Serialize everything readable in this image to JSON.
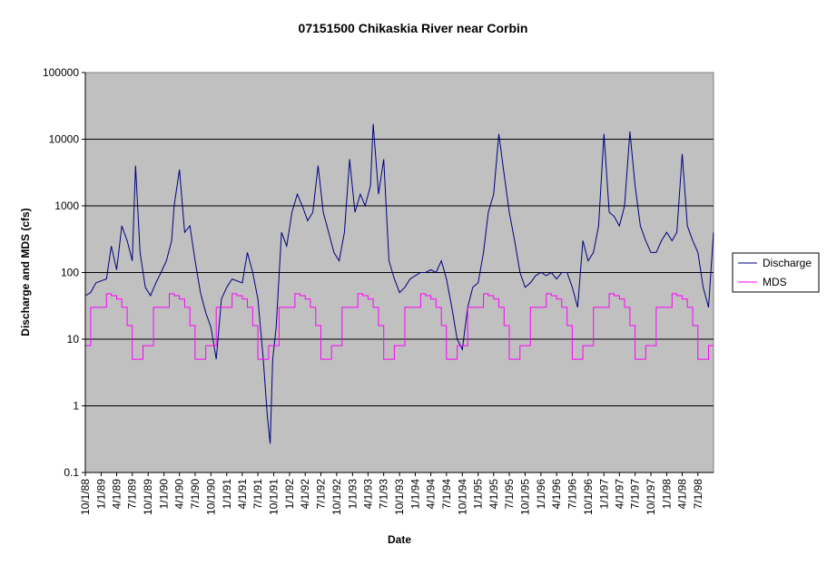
{
  "chart_data": {
    "type": "line",
    "title": "07151500 Chikaskia River near Corbin",
    "xlabel": "Date",
    "ylabel": "Discharge and MDS (cfs)",
    "y_scale": "log",
    "ylim": [
      0.1,
      100000
    ],
    "y_ticks": [
      "0.1",
      "1",
      "10",
      "100",
      "1000",
      "10000",
      "100000"
    ],
    "x_range": [
      "1988-10-01",
      "1998-09-30"
    ],
    "x_ticks": [
      "10/1/88",
      "1/1/89",
      "4/1/89",
      "7/1/89",
      "10/1/89",
      "1/1/90",
      "4/1/90",
      "7/1/90",
      "10/1/90",
      "1/1/91",
      "4/1/91",
      "7/1/91",
      "10/1/91",
      "1/1/92",
      "4/1/92",
      "7/1/92",
      "10/1/92",
      "1/1/93",
      "4/1/93",
      "7/1/93",
      "10/1/93",
      "1/1/94",
      "4/1/94",
      "7/1/94",
      "10/1/94",
      "1/1/95",
      "4/1/95",
      "7/1/95",
      "10/1/95",
      "1/1/96",
      "4/1/96",
      "7/1/96",
      "10/1/96",
      "1/1/97",
      "4/1/97",
      "7/1/97",
      "10/1/97",
      "1/1/98",
      "4/1/98",
      "7/1/98"
    ],
    "grid": "horizontal",
    "plot_background": "#c0c0c0",
    "legend_position": "right",
    "series": [
      {
        "name": "Discharge",
        "color": "#000080",
        "points": [
          [
            "1988-10-01",
            45
          ],
          [
            "1988-11-01",
            50
          ],
          [
            "1988-12-01",
            70
          ],
          [
            "1989-01-01",
            75
          ],
          [
            "1989-02-01",
            80
          ],
          [
            "1989-03-01",
            250
          ],
          [
            "1989-04-01",
            110
          ],
          [
            "1989-05-01",
            500
          ],
          [
            "1989-06-01",
            300
          ],
          [
            "1989-07-01",
            150
          ],
          [
            "1989-07-20",
            4000
          ],
          [
            "1989-08-15",
            200
          ],
          [
            "1989-09-15",
            60
          ],
          [
            "1989-10-15",
            45
          ],
          [
            "1989-11-15",
            70
          ],
          [
            "1989-12-15",
            100
          ],
          [
            "1990-01-15",
            150
          ],
          [
            "1990-02-15",
            300
          ],
          [
            "1990-03-01",
            1000
          ],
          [
            "1990-04-01",
            3500
          ],
          [
            "1990-05-01",
            400
          ],
          [
            "1990-06-01",
            500
          ],
          [
            "1990-07-01",
            150
          ],
          [
            "1990-08-01",
            50
          ],
          [
            "1990-09-01",
            25
          ],
          [
            "1990-10-01",
            15
          ],
          [
            "1990-11-01",
            5
          ],
          [
            "1990-12-01",
            40
          ],
          [
            "1991-01-01",
            60
          ],
          [
            "1991-02-01",
            80
          ],
          [
            "1991-03-01",
            75
          ],
          [
            "1991-04-01",
            70
          ],
          [
            "1991-05-01",
            200
          ],
          [
            "1991-06-01",
            100
          ],
          [
            "1991-07-01",
            40
          ],
          [
            "1991-08-01",
            5
          ],
          [
            "1991-08-25",
            0.7
          ],
          [
            "1991-09-10",
            0.27
          ],
          [
            "1991-09-25",
            5
          ],
          [
            "1991-10-15",
            15
          ],
          [
            "1991-11-15",
            400
          ],
          [
            "1991-12-15",
            250
          ],
          [
            "1992-01-15",
            800
          ],
          [
            "1992-02-15",
            1500
          ],
          [
            "1992-03-15",
            1000
          ],
          [
            "1992-04-15",
            600
          ],
          [
            "1992-05-15",
            800
          ],
          [
            "1992-06-15",
            4000
          ],
          [
            "1992-07-15",
            800
          ],
          [
            "1992-08-15",
            400
          ],
          [
            "1992-09-15",
            200
          ],
          [
            "1992-10-15",
            150
          ],
          [
            "1992-11-15",
            400
          ],
          [
            "1992-12-15",
            5000
          ],
          [
            "1993-01-15",
            800
          ],
          [
            "1993-02-15",
            1500
          ],
          [
            "1993-03-15",
            1000
          ],
          [
            "1993-04-15",
            2000
          ],
          [
            "1993-05-01",
            17000
          ],
          [
            "1993-06-01",
            1500
          ],
          [
            "1993-07-01",
            5000
          ],
          [
            "1993-08-01",
            150
          ],
          [
            "1993-09-01",
            80
          ],
          [
            "1993-10-01",
            50
          ],
          [
            "1993-11-01",
            60
          ],
          [
            "1993-12-01",
            80
          ],
          [
            "1994-01-01",
            90
          ],
          [
            "1994-02-01",
            100
          ],
          [
            "1994-03-01",
            100
          ],
          [
            "1994-04-01",
            110
          ],
          [
            "1994-05-01",
            100
          ],
          [
            "1994-06-01",
            150
          ],
          [
            "1994-07-01",
            80
          ],
          [
            "1994-08-01",
            30
          ],
          [
            "1994-09-01",
            10
          ],
          [
            "1994-10-01",
            7
          ],
          [
            "1994-11-01",
            30
          ],
          [
            "1994-12-01",
            60
          ],
          [
            "1995-01-01",
            70
          ],
          [
            "1995-02-01",
            200
          ],
          [
            "1995-03-01",
            800
          ],
          [
            "1995-04-01",
            1500
          ],
          [
            "1995-05-01",
            12000
          ],
          [
            "1995-06-01",
            3000
          ],
          [
            "1995-07-01",
            800
          ],
          [
            "1995-08-01",
            300
          ],
          [
            "1995-09-01",
            100
          ],
          [
            "1995-10-01",
            60
          ],
          [
            "1995-11-01",
            70
          ],
          [
            "1995-12-01",
            90
          ],
          [
            "1996-01-01",
            100
          ],
          [
            "1996-02-01",
            90
          ],
          [
            "1996-03-01",
            100
          ],
          [
            "1996-04-01",
            80
          ],
          [
            "1996-05-01",
            100
          ],
          [
            "1996-06-01",
            100
          ],
          [
            "1996-07-01",
            60
          ],
          [
            "1996-08-01",
            30
          ],
          [
            "1996-09-01",
            300
          ],
          [
            "1996-10-01",
            150
          ],
          [
            "1996-11-01",
            200
          ],
          [
            "1996-12-01",
            500
          ],
          [
            "1997-01-01",
            12000
          ],
          [
            "1997-02-01",
            800
          ],
          [
            "1997-03-01",
            700
          ],
          [
            "1997-04-01",
            500
          ],
          [
            "1997-05-01",
            1000
          ],
          [
            "1997-06-01",
            13000
          ],
          [
            "1997-07-01",
            2000
          ],
          [
            "1997-08-01",
            500
          ],
          [
            "1997-09-01",
            300
          ],
          [
            "1997-10-01",
            200
          ],
          [
            "1997-11-01",
            200
          ],
          [
            "1997-12-01",
            300
          ],
          [
            "1998-01-01",
            400
          ],
          [
            "1998-02-01",
            300
          ],
          [
            "1998-03-01",
            400
          ],
          [
            "1998-04-01",
            6000
          ],
          [
            "1998-05-01",
            500
          ],
          [
            "1998-06-01",
            300
          ],
          [
            "1998-07-01",
            200
          ],
          [
            "1998-08-01",
            60
          ],
          [
            "1998-09-01",
            30
          ],
          [
            "1998-09-30",
            400
          ]
        ]
      },
      {
        "name": "MDS",
        "color": "#ff00ff",
        "monthly_pattern": [
          8,
          30,
          30,
          30,
          48,
          45,
          40,
          30,
          16,
          5,
          5,
          8
        ],
        "pattern_start": "1988-10-01"
      }
    ]
  }
}
